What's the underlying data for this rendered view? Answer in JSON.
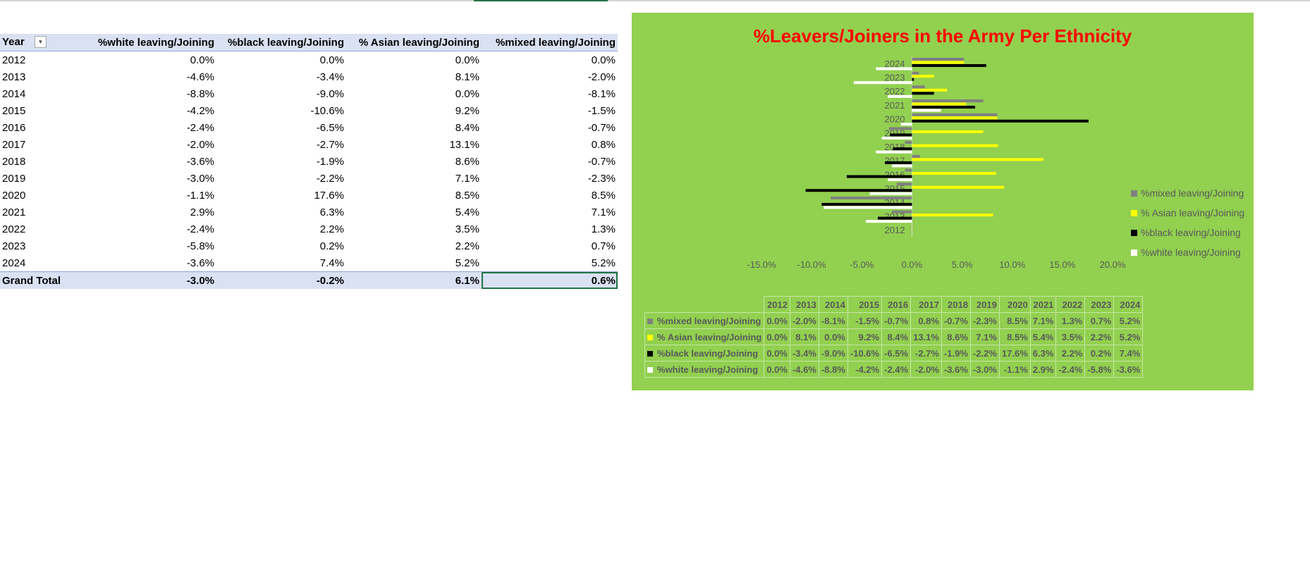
{
  "pivot": {
    "headers": {
      "year": "Year",
      "white": "%white leaving/Joining",
      "black": "%black leaving/Joining",
      "asian": "% Asian leaving/Joining",
      "mixed": "%mixed leaving/Joining"
    },
    "rows": [
      {
        "year": "2012",
        "white": "0.0%",
        "black": "0.0%",
        "asian": "0.0%",
        "mixed": "0.0%"
      },
      {
        "year": "2013",
        "white": "-4.6%",
        "black": "-3.4%",
        "asian": "8.1%",
        "mixed": "-2.0%"
      },
      {
        "year": "2014",
        "white": "-8.8%",
        "black": "-9.0%",
        "asian": "0.0%",
        "mixed": "-8.1%"
      },
      {
        "year": "2015",
        "white": "-4.2%",
        "black": "-10.6%",
        "asian": "9.2%",
        "mixed": "-1.5%"
      },
      {
        "year": "2016",
        "white": "-2.4%",
        "black": "-6.5%",
        "asian": "8.4%",
        "mixed": "-0.7%"
      },
      {
        "year": "2017",
        "white": "-2.0%",
        "black": "-2.7%",
        "asian": "13.1%",
        "mixed": "0.8%"
      },
      {
        "year": "2018",
        "white": "-3.6%",
        "black": "-1.9%",
        "asian": "8.6%",
        "mixed": "-0.7%"
      },
      {
        "year": "2019",
        "white": "-3.0%",
        "black": "-2.2%",
        "asian": "7.1%",
        "mixed": "-2.3%"
      },
      {
        "year": "2020",
        "white": "-1.1%",
        "black": "17.6%",
        "asian": "8.5%",
        "mixed": "8.5%"
      },
      {
        "year": "2021",
        "white": "2.9%",
        "black": "6.3%",
        "asian": "5.4%",
        "mixed": "7.1%"
      },
      {
        "year": "2022",
        "white": "-2.4%",
        "black": "2.2%",
        "asian": "3.5%",
        "mixed": "1.3%"
      },
      {
        "year": "2023",
        "white": "-5.8%",
        "black": "0.2%",
        "asian": "2.2%",
        "mixed": "0.7%"
      },
      {
        "year": "2024",
        "white": "-3.6%",
        "black": "7.4%",
        "asian": "5.2%",
        "mixed": "5.2%"
      }
    ],
    "total": {
      "label": "Grand Total",
      "white": "-3.0%",
      "black": "-0.2%",
      "asian": "6.1%",
      "mixed": "0.6%"
    }
  },
  "chart_data": {
    "type": "bar",
    "orientation": "horizontal",
    "title": "%Leavers/Joiners in the Army Per Ethnicity",
    "categories": [
      "2012",
      "2013",
      "2014",
      "2015",
      "2016",
      "2017",
      "2018",
      "2019",
      "2020",
      "2021",
      "2022",
      "2023",
      "2024"
    ],
    "xlim": [
      -15,
      20
    ],
    "xticks": [
      -15,
      -10,
      -5,
      0,
      5,
      10,
      15,
      20
    ],
    "xtick_labels": [
      "-15.0%",
      "-10.0%",
      "-5.0%",
      "0.0%",
      "5.0%",
      "10.0%",
      "15.0%",
      "20.0%"
    ],
    "series": [
      {
        "name": "%mixed leaving/Joining",
        "color": "#808080",
        "values": [
          0.0,
          -2.0,
          -8.1,
          -1.5,
          -0.7,
          0.8,
          -0.7,
          -2.3,
          8.5,
          7.1,
          1.3,
          0.7,
          5.2
        ],
        "labels": [
          "0.0%",
          "-2.0%",
          "-8.1%",
          "-1.5%",
          "-0.7%",
          "0.8%",
          "-0.7%",
          "-2.3%",
          "8.5%",
          "7.1%",
          "1.3%",
          "0.7%",
          "5.2%"
        ]
      },
      {
        "name": "% Asian leaving/Joining",
        "color": "#ffff00",
        "values": [
          0.0,
          8.1,
          0.0,
          9.2,
          8.4,
          13.1,
          8.6,
          7.1,
          8.5,
          5.4,
          3.5,
          2.2,
          5.2
        ],
        "labels": [
          "0.0%",
          "8.1%",
          "0.0%",
          "9.2%",
          "8.4%",
          "13.1%",
          "8.6%",
          "7.1%",
          "8.5%",
          "5.4%",
          "3.5%",
          "2.2%",
          "5.2%"
        ]
      },
      {
        "name": "%black leaving/Joining",
        "color": "#000000",
        "values": [
          0.0,
          -3.4,
          -9.0,
          -10.6,
          -6.5,
          -2.7,
          -1.9,
          -2.2,
          17.6,
          6.3,
          2.2,
          0.2,
          7.4
        ],
        "labels": [
          "0.0%",
          "-3.4%",
          "-9.0%",
          "-10.6%",
          "-6.5%",
          "-2.7%",
          "-1.9%",
          "-2.2%",
          "17.6%",
          "6.3%",
          "2.2%",
          "0.2%",
          "7.4%"
        ]
      },
      {
        "name": "%white leaving/Joining",
        "color": "#ffffff",
        "values": [
          0.0,
          -4.6,
          -8.8,
          -4.2,
          -2.4,
          -2.0,
          -3.6,
          -3.0,
          -1.1,
          2.9,
          -2.4,
          -5.8,
          -3.6
        ],
        "labels": [
          "0.0%",
          "-4.6%",
          "-8.8%",
          "-4.2%",
          "-2.4%",
          "-2.0%",
          "-3.6%",
          "-3.0%",
          "-1.1%",
          "2.9%",
          "-2.4%",
          "-5.8%",
          "-3.6%"
        ]
      }
    ],
    "legend_position": "right",
    "gridlines": false,
    "data_table": true
  },
  "colors": {
    "chart_background": "#92d050",
    "title": "#ff0000",
    "pivot_header": "#d9e1f2",
    "selection": "#217346"
  },
  "icons": {
    "filter": "dropdown-filter-icon"
  }
}
